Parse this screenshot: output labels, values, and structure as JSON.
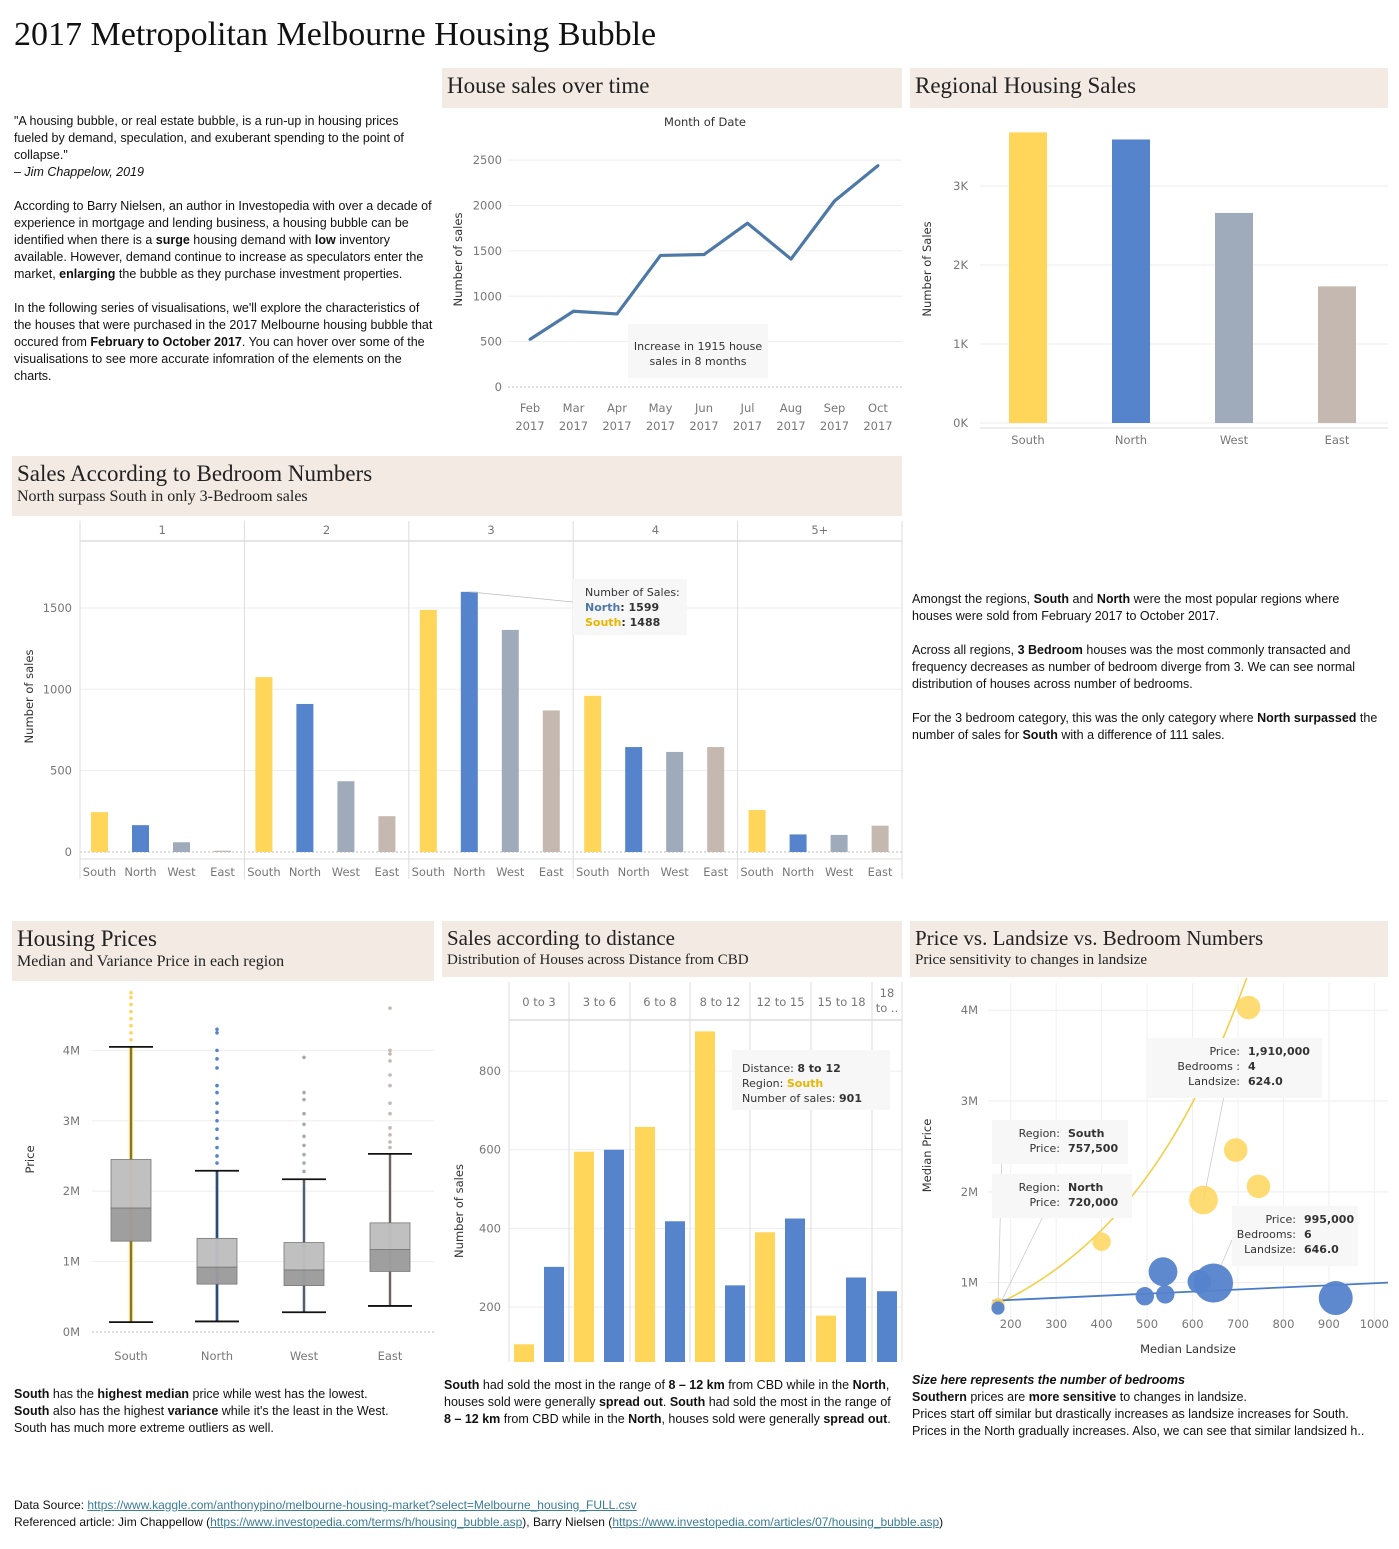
{
  "page": {
    "title": "2017 Metropolitan Melbourne Housing Bubble"
  },
  "colors": {
    "south": "#ffd55a",
    "north": "#5583cc",
    "west": "#9fabbb",
    "east": "#c5b8b1",
    "line": "#4e79a7",
    "header_bg": "#f3ebe3",
    "link": "#3b7d98"
  },
  "intro": {
    "quote": "\"A housing bubble, or real estate bubble, is a run-up in housing prices fueled by demand, speculation, and exuberant spending to the point of collapse.\"",
    "quote_author": "– Jim Chappelow, 2019",
    "p2_a": "According to Barry Nielsen, an author in Investopedia with over a decade of experience in mortgage and lending business, a housing bubble can be identified when there is a ",
    "p2_b": "surge",
    "p2_c": " housing demand with ",
    "p2_d": "low",
    "p2_e": " inventory available. However, demand continue to increase as speculators enter the market, ",
    "p2_f": "enlarging",
    "p2_g": " the bubble as they purchase investment properties.",
    "p3_a": "In the following series of visualisations, we'll explore the characteristics of the houses that were purchased in the 2017 Melbourne housing bubble that occured from ",
    "p3_b": "February to October 2017",
    "p3_c": ". You can hover over some of the visualisations to see more accurate infomration of the elements on the charts."
  },
  "panels": {
    "time": {
      "title": "House sales over time"
    },
    "regional": {
      "title": "Regional Housing Sales"
    },
    "bedroom": {
      "title": "Sales According to Bedroom Numbers",
      "subtitle": "North surpass South in only 3-Bedroom sales"
    },
    "prices": {
      "title": "Housing Prices",
      "subtitle": "Median and Variance Price in each region"
    },
    "distance": {
      "title": "Sales according to distance",
      "subtitle": "Distribution of Houses across Distance from CBD"
    },
    "scatter": {
      "title": "Price vs. Landsize vs. Bedroom Numbers",
      "subtitle": "Price sensitivity to changes in landsize"
    }
  },
  "bedroom_text": {
    "p1_a": "Amongst the regions, ",
    "p1_b": "South",
    "p1_c": " and ",
    "p1_d": "North",
    "p1_e": " were the most popular regions where houses were sold from February 2017 to October 2017.",
    "p2_a": "Across all regions, ",
    "p2_b": "3 Bedroom",
    "p2_c": " houses was the most commonly transacted and frequency decreases as number of bedroom diverge from 3. We can see normal distribution of houses across number of bedrooms.",
    "p3_a": "For the 3 bedroom category, this was the only category where ",
    "p3_b": "North surpassed",
    "p3_c": " the number of sales for ",
    "p3_d": "South",
    "p3_e": " with a difference of 111 sales."
  },
  "prices_text": {
    "l1_a": "South",
    "l1_b": " has the ",
    "l1_c": "highest median",
    "l1_d": " price while west has the lowest.",
    "l2_a": "South",
    "l2_b": " also has the highest ",
    "l2_c": "variance",
    "l2_d": " while it's the least in the West.",
    "l3": "South has much more extreme outliers as well."
  },
  "distance_text": {
    "a": "South",
    "b": " had sold the most in the range of ",
    "c": "8 – 12 km",
    "d": " from CBD while in the ",
    "e": "North",
    "f": ", houses sold were generally ",
    "g": "spread out",
    "h": ". ",
    "i": "South",
    "j": " had sold the most in the range of ",
    "k": "8 – 12 km",
    "l": " from CBD while in the ",
    "m": "North",
    "n": ", houses sold were generally ",
    "o": "spread out",
    "p": "."
  },
  "scatter_text": {
    "note": "Size here represents the number of bedrooms",
    "l2_a": "Southern",
    "l2_b": " prices are ",
    "l2_c": "more sensitive",
    "l2_d": " to changes in landsize.",
    "l3": "Prices start off similar but drastically increases as landsize increases for South.",
    "l4": "Prices in the North gradually increases. Also, we can see that similar landsized h.."
  },
  "footer": {
    "source_label": "Data Source: ",
    "source_url": "https://www.kaggle.com/anthonypino/melbourne-housing-market?select=Melbourne_housing_FULL.csv",
    "ref_label": "Referenced article: Jim Chappellow (",
    "ref_url1": "https://www.investopedia.com/terms/h/housing_bubble.asp",
    "ref_mid": "), Barry Nielsen (",
    "ref_url2": "https://www.investopedia.com/articles/07/housing_bubble.asp",
    "ref_end": ")"
  },
  "chart_data": [
    {
      "id": "time",
      "type": "line",
      "title": "Month of Date",
      "ylabel": "Number of sales",
      "x": [
        "Feb",
        "Mar",
        "Apr",
        "May",
        "Jun",
        "Jul",
        "Aug",
        "Sep",
        "Oct"
      ],
      "x_sub": "2017",
      "values": [
        525,
        835,
        805,
        1450,
        1460,
        1805,
        1410,
        2050,
        2440
      ],
      "ylim": [
        0,
        2700
      ],
      "yticks": [
        0,
        500,
        1000,
        1500,
        2000,
        2500
      ],
      "annotation": "Increase in 1915 house sales in 8 months"
    },
    {
      "id": "regional",
      "type": "bar",
      "ylabel": "Number of Sales",
      "categories": [
        "South",
        "North",
        "West",
        "East"
      ],
      "values": [
        3680,
        3590,
        2660,
        1730
      ],
      "ylim": [
        0,
        3900
      ],
      "yticks": [
        0,
        1000,
        2000,
        3000
      ],
      "ytick_labels": [
        "0K",
        "1K",
        "2K",
        "3K"
      ]
    },
    {
      "id": "bedroom",
      "type": "bar",
      "ylabel": "Number of sales",
      "facets": [
        "1",
        "2",
        "3",
        "4",
        "5+"
      ],
      "categories": [
        "South",
        "North",
        "West",
        "East"
      ],
      "series": [
        {
          "facet": "1",
          "values": [
            245,
            165,
            60,
            8
          ]
        },
        {
          "facet": "2",
          "values": [
            1075,
            910,
            435,
            220
          ]
        },
        {
          "facet": "3",
          "values": [
            1488,
            1599,
            1365,
            870
          ]
        },
        {
          "facet": "4",
          "values": [
            960,
            645,
            615,
            645
          ]
        },
        {
          "facet": "5+",
          "values": [
            258,
            108,
            105,
            162
          ]
        }
      ],
      "ylim": [
        0,
        1850
      ],
      "yticks": [
        0,
        500,
        1000,
        1500
      ],
      "tooltip": {
        "title": "Number of Sales:",
        "north_label": "North",
        "north_value": ": 1599",
        "south_label": "South",
        "south_value": ": 1488"
      }
    },
    {
      "id": "prices",
      "type": "box",
      "ylabel": "Price",
      "categories": [
        "South",
        "North",
        "West",
        "East"
      ],
      "boxes": [
        {
          "min": 140000,
          "q1": 1290000,
          "median": 1760000,
          "q3": 2450000,
          "max": 4050000,
          "outliers": [
            4150000,
            4250000,
            4350000,
            4450000,
            4550000,
            4650000,
            4750000,
            4820000
          ]
        },
        {
          "min": 150000,
          "q1": 680000,
          "median": 920000,
          "q3": 1330000,
          "max": 2290000,
          "outliers": [
            2400000,
            2500000,
            2620000,
            2750000,
            2880000,
            3000000,
            3120000,
            3250000,
            3400000,
            3500000,
            3750000,
            3880000,
            4000000,
            4250000,
            4300000
          ]
        },
        {
          "min": 280000,
          "q1": 660000,
          "median": 880000,
          "q3": 1270000,
          "max": 2170000,
          "outliers": [
            2280000,
            2400000,
            2520000,
            2650000,
            2780000,
            2950000,
            3100000,
            3300000,
            3400000,
            3900000
          ]
        },
        {
          "min": 370000,
          "q1": 860000,
          "median": 1170000,
          "q3": 1550000,
          "max": 2530000,
          "outliers": [
            2620000,
            2700000,
            2800000,
            2900000,
            3100000,
            3250000,
            3500000,
            3650000,
            3850000,
            3950000,
            4000000,
            4600000
          ]
        }
      ],
      "ylim": [
        0,
        4900000
      ],
      "yticks": [
        0,
        1000000,
        2000000,
        3000000,
        4000000
      ],
      "ytick_labels": [
        "0M",
        "1M",
        "2M",
        "3M",
        "4M"
      ]
    },
    {
      "id": "distance",
      "type": "bar",
      "ylabel": "Number of sales",
      "facets": [
        "0 to 3",
        "3 to 6",
        "6 to 8",
        "8 to 12",
        "12 to 15",
        "15 to 18",
        "18 to .."
      ],
      "series": [
        {
          "name": "South",
          "values": [
            105,
            595,
            658,
            901,
            390,
            178,
            null
          ]
        },
        {
          "name": "North",
          "values": [
            302,
            600,
            418,
            255,
            425,
            275,
            240
          ]
        }
      ],
      "ylim": [
        60,
        930
      ],
      "yticks": [
        200,
        400,
        600,
        800
      ],
      "tooltip": {
        "l1_label": "Distance: ",
        "l1_value": "8 to 12",
        "l2_label": "Region: ",
        "l2_value": "South",
        "l3_label": "Number of sales: ",
        "l3_value": "901"
      }
    },
    {
      "id": "scatter",
      "type": "scatter",
      "xlabel": "Median Landsize",
      "ylabel": "Median Price",
      "xlim": [
        150,
        1030
      ],
      "ylim": [
        500000,
        4300000
      ],
      "xticks": [
        200,
        300,
        400,
        500,
        600,
        700,
        800,
        900,
        1000
      ],
      "yticks": [
        1000000,
        2000000,
        3000000,
        4000000
      ],
      "ytick_labels": [
        "1M",
        "2M",
        "3M",
        "4M"
      ],
      "series": [
        {
          "name": "South",
          "points": [
            {
              "x": 172,
              "y": 757500,
              "beds": 1
            },
            {
              "x": 400,
              "y": 1450000,
              "beds": 2
            },
            {
              "x": 624,
              "y": 1910000,
              "beds": 4
            },
            {
              "x": 695,
              "y": 2460000,
              "beds": 3
            },
            {
              "x": 745,
              "y": 2060000,
              "beds": 3
            },
            {
              "x": 723,
              "y": 4030000,
              "beds": 3
            }
          ]
        },
        {
          "name": "North",
          "points": [
            {
              "x": 172,
              "y": 720000,
              "beds": 1
            },
            {
              "x": 495,
              "y": 850000,
              "beds": 2
            },
            {
              "x": 535,
              "y": 1120000,
              "beds": 4
            },
            {
              "x": 540,
              "y": 870000,
              "beds": 2
            },
            {
              "x": 615,
              "y": 1010000,
              "beds": 3
            },
            {
              "x": 646,
              "y": 995000,
              "beds": 6
            },
            {
              "x": 915,
              "y": 830000,
              "beds": 5
            }
          ]
        }
      ],
      "tooltips": [
        {
          "l1_label": "Price:",
          "l1_value": "1,910,000",
          "l2_label": "Bedrooms :",
          "l2_value": "4",
          "l3_label": "Landsize:",
          "l3_value": "624.0"
        },
        {
          "l1_label": "Region: ",
          "l1_value": "South",
          "l2_label": "Price:",
          "l2_value": "757,500"
        },
        {
          "l1_label": "Region: ",
          "l1_value": "North",
          "l2_label": "Price:",
          "l2_value": "720,000"
        },
        {
          "l1_label": "Price:",
          "l1_value": "995,000",
          "l2_label": "Bedrooms: ",
          "l2_value": "6",
          "l3_label": "Landsize: ",
          "l3_value": "646.0"
        }
      ]
    }
  ]
}
